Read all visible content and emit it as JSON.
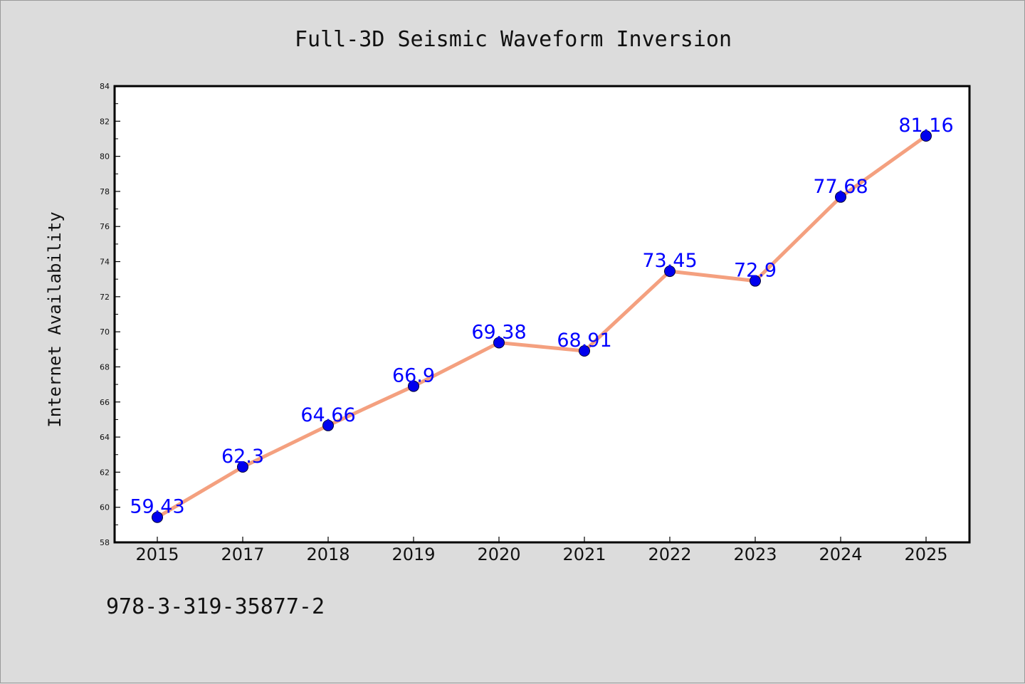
{
  "chart_data": {
    "type": "line",
    "title": "Full-3D Seismic Waveform Inversion",
    "xlabel": "",
    "ylabel": "Internet Availability",
    "categories": [
      "2015",
      "2017",
      "2018",
      "2019",
      "2020",
      "2021",
      "2022",
      "2023",
      "2024",
      "2025"
    ],
    "series": [
      {
        "values": [
          59.43,
          62.3,
          64.66,
          66.9,
          69.38,
          68.91,
          73.45,
          72.9,
          77.68,
          81.16
        ],
        "labels": [
          "59.43",
          "62.3",
          "64.66",
          "66.9",
          "69.38",
          "68.91",
          "73.45",
          "72.9",
          "77.68",
          "81.16"
        ]
      }
    ],
    "ylim": [
      58,
      84
    ],
    "yticks": [
      "58",
      "60",
      "62",
      "64",
      "66",
      "68",
      "70",
      "72",
      "74",
      "76",
      "78",
      "80",
      "82",
      "84"
    ],
    "grid": false,
    "line_color": "#f4a07f",
    "marker_color": "#0000ee",
    "label_color": "#0000ff"
  },
  "footer": {
    "isbn": "978-3-319-35877-2"
  }
}
